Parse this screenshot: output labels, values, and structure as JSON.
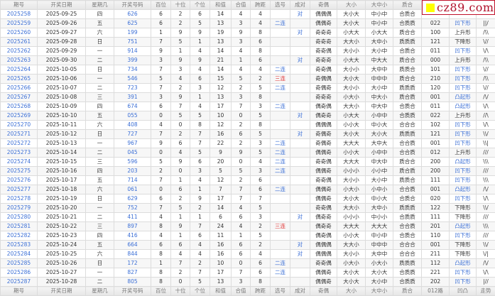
{
  "headers": [
    "期号",
    "开奖日期",
    "星期几",
    "开奖号码",
    "百位",
    "十位",
    "个位",
    "和值",
    "合值",
    "跨距",
    "选号",
    "成对",
    "奇偶",
    "大小",
    "大中小",
    "质合",
    "012路",
    "凹凸",
    "走势"
  ],
  "logo_text": "cz89.com",
  "colors": {
    "accent_blue": "#3b6fd6",
    "accent_red": "#e03434",
    "logo_red": "#b0102a",
    "logo_yellow": "#ffff00"
  },
  "rows": [
    [
      "2025258",
      "2025-09-25",
      "四",
      "626",
      "6",
      "2",
      "6",
      "14",
      "4",
      "4",
      "",
      "对",
      "偶偶偶",
      "大小大",
      "中小中",
      "合质合",
      "",
      "",
      ""
    ],
    [
      "2025259",
      "2025-09-26",
      "五",
      "625",
      "6",
      "2",
      "5",
      "13",
      "3",
      "4",
      "二连",
      "",
      "偶偶奇",
      "大小大",
      "中小中",
      "合质质",
      "022",
      "凹下形",
      "||/"
    ],
    [
      "2025260",
      "2025-09-27",
      "六",
      "199",
      "1",
      "9",
      "9",
      "19",
      "9",
      "8",
      "",
      "对",
      "奇奇奇",
      "小大大",
      "小大大",
      "质合合",
      "100",
      "上升形",
      "/\\\\"
    ],
    [
      "2025261",
      "2025-09-28",
      "日",
      "751",
      "7",
      "5",
      "1",
      "13",
      "3",
      "6",
      "",
      "",
      "奇奇奇",
      "大大小",
      "大中小",
      "质质质",
      "121",
      "下降形",
      "\\//"
    ],
    [
      "2025262",
      "2025-09-29",
      "一",
      "914",
      "9",
      "1",
      "4",
      "14",
      "4",
      "8",
      "",
      "",
      "奇奇偶",
      "大小小",
      "大小中",
      "合质合",
      "011",
      "凹下形",
      "\\/\\"
    ],
    [
      "2025263",
      "2025-09-30",
      "二",
      "399",
      "3",
      "9",
      "9",
      "21",
      "1",
      "6",
      "",
      "对",
      "奇奇奇",
      "小大大",
      "中大大",
      "质合合",
      "000",
      "上升形",
      "/\\\\"
    ],
    [
      "2025264",
      "2025-10-05",
      "日",
      "734",
      "7",
      "3",
      "4",
      "14",
      "4",
      "4",
      "二连",
      "",
      "奇奇偶",
      "大小小",
      "大中中",
      "质质合",
      "101",
      "凹下形",
      "\\//"
    ],
    [
      "2025265",
      "2025-10-06",
      "一",
      "546",
      "5",
      "4",
      "6",
      "15",
      "5",
      "2",
      "三连",
      "",
      "奇偶偶",
      "大小大",
      "中中中",
      "质合合",
      "210",
      "凹下形",
      "/\\\\"
    ],
    [
      "2025266",
      "2025-10-07",
      "二",
      "723",
      "7",
      "2",
      "3",
      "12",
      "2",
      "5",
      "二连",
      "",
      "奇偶奇",
      "大小小",
      "大小中",
      "质质质",
      "120",
      "凹下形",
      "\\//"
    ],
    [
      "2025267",
      "2025-10-08",
      "三",
      "391",
      "3",
      "9",
      "1",
      "13",
      "3",
      "8",
      "",
      "",
      "奇奇奇",
      "小大小",
      "中大小",
      "质合质",
      "001",
      "凸起形",
      "/\\/"
    ],
    [
      "2025268",
      "2025-10-09",
      "四",
      "674",
      "6",
      "7",
      "4",
      "17",
      "7",
      "3",
      "二连",
      "",
      "偶奇偶",
      "大大小",
      "中大中",
      "合质合",
      "011",
      "凸起形",
      "\\/\\"
    ],
    [
      "2025269",
      "2025-10-10",
      "五",
      "055",
      "0",
      "5",
      "5",
      "10",
      "0",
      "5",
      "",
      "对",
      "偶奇奇",
      "小大大",
      "小中中",
      "合质质",
      "022",
      "上升形",
      "//\\"
    ],
    [
      "2025270",
      "2025-10-11",
      "六",
      "408",
      "4",
      "0",
      "8",
      "12",
      "2",
      "8",
      "",
      "",
      "偶偶偶",
      "小小大",
      "中小大",
      "合合合",
      "102",
      "凹下形",
      "\\/\\"
    ],
    [
      "2025271",
      "2025-10-12",
      "日",
      "727",
      "7",
      "2",
      "7",
      "16",
      "6",
      "5",
      "",
      "对",
      "奇偶奇",
      "大小大",
      "大小大",
      "质质质",
      "121",
      "凹下形",
      "\\\\/"
    ],
    [
      "2025272",
      "2025-10-13",
      "一",
      "967",
      "9",
      "6",
      "7",
      "22",
      "2",
      "3",
      "二连",
      "",
      "奇偶奇",
      "大大大",
      "大中大",
      "合合质",
      "001",
      "凹下形",
      "\\\\|"
    ],
    [
      "2025273",
      "2025-10-14",
      "二",
      "045",
      "0",
      "4",
      "5",
      "9",
      "9",
      "5",
      "二连",
      "",
      "偶偶奇",
      "小小大",
      "小中中",
      "合合质",
      "012",
      "上升形",
      "///"
    ],
    [
      "2025274",
      "2025-10-15",
      "三",
      "596",
      "5",
      "9",
      "6",
      "20",
      "0",
      "4",
      "二连",
      "",
      "奇奇偶",
      "大大大",
      "中大中",
      "质合合",
      "200",
      "凸起形",
      "\\\\\\"
    ],
    [
      "2025275",
      "2025-10-16",
      "四",
      "203",
      "2",
      "0",
      "3",
      "5",
      "5",
      "3",
      "二连",
      "",
      "偶偶奇",
      "小小小",
      "小小中",
      "质合质",
      "200",
      "凹下形",
      "///"
    ],
    [
      "2025276",
      "2025-10-17",
      "五",
      "714",
      "7",
      "1",
      "4",
      "12",
      "2",
      "6",
      "",
      "",
      "奇奇偶",
      "大小小",
      "大小中",
      "质质合",
      "111",
      "凹下形",
      "\\\\\\"
    ],
    [
      "2025277",
      "2025-10-18",
      "六",
      "061",
      "0",
      "6",
      "1",
      "7",
      "7",
      "6",
      "二连",
      "",
      "偶偶奇",
      "小大小",
      "小中小",
      "合合质",
      "001",
      "凸起形",
      "/\\/"
    ],
    [
      "2025278",
      "2025-10-19",
      "日",
      "629",
      "6",
      "2",
      "9",
      "17",
      "7",
      "7",
      "",
      "",
      "偶偶奇",
      "大小大",
      "中小大",
      "合质合",
      "020",
      "凹下形",
      "\\/\\"
    ],
    [
      "2025279",
      "2025-10-20",
      "一",
      "752",
      "7",
      "5",
      "2",
      "14",
      "4",
      "5",
      "",
      "",
      "奇奇偶",
      "大大小",
      "大中小",
      "质质质",
      "122",
      "下降形",
      "\\\\/"
    ],
    [
      "2025280",
      "2025-10-21",
      "二",
      "411",
      "4",
      "1",
      "1",
      "6",
      "6",
      "3",
      "",
      "对",
      "偶奇奇",
      "小小小",
      "中小小",
      "合质质",
      "111",
      "下降形",
      "///"
    ],
    [
      "2025281",
      "2025-10-22",
      "三",
      "897",
      "8",
      "9",
      "7",
      "24",
      "4",
      "2",
      "三连",
      "",
      "偶奇奇",
      "大大大",
      "大大大",
      "合合质",
      "201",
      "凸起形",
      "\\\\\\"
    ],
    [
      "2025282",
      "2025-10-23",
      "四",
      "416",
      "4",
      "1",
      "6",
      "11",
      "1",
      "5",
      "",
      "",
      "偶奇偶",
      "小小大",
      "中小中",
      "合质合",
      "110",
      "凹下形",
      "///"
    ],
    [
      "2025283",
      "2025-10-24",
      "五",
      "664",
      "6",
      "6",
      "4",
      "16",
      "6",
      "2",
      "",
      "对",
      "偶偶偶",
      "大大小",
      "中中中",
      "合合合",
      "001",
      "下降形",
      "\\\\/"
    ],
    [
      "2025284",
      "2025-10-25",
      "六",
      "844",
      "8",
      "4",
      "4",
      "16",
      "6",
      "4",
      "",
      "对",
      "偶偶偶",
      "大小小",
      "大中中",
      "合合合",
      "211",
      "下降形",
      "\\/|"
    ],
    [
      "2025285",
      "2025-10-26",
      "日",
      "172",
      "1",
      "7",
      "2",
      "10",
      "0",
      "6",
      "二连",
      "",
      "奇奇偶",
      "小大小",
      "小大小",
      "质质质",
      "112",
      "凸起形",
      "/\\/"
    ],
    [
      "2025286",
      "2025-10-27",
      "一",
      "827",
      "8",
      "2",
      "7",
      "17",
      "7",
      "6",
      "二连",
      "",
      "偶偶奇",
      "大小大",
      "大小大",
      "合质质",
      "221",
      "凹下形",
      "\\/\\"
    ],
    [
      "2025287",
      "2025-10-28",
      "二",
      "805",
      "8",
      "0",
      "5",
      "13",
      "3",
      "8",
      "",
      "",
      "偶偶奇",
      "大小大",
      "大小中",
      "合质质",
      "202",
      "凹下形",
      "|//"
    ]
  ]
}
